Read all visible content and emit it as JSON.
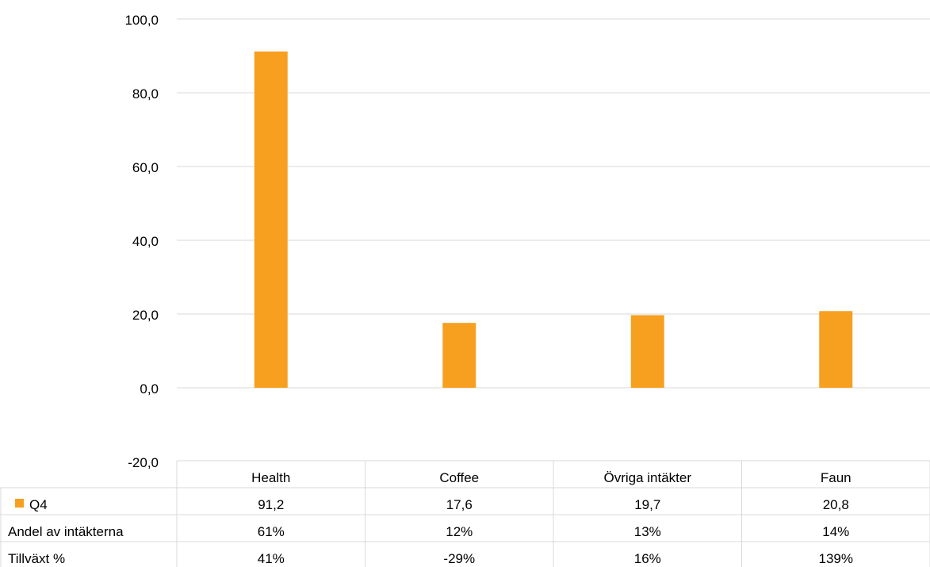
{
  "chart_data": {
    "type": "bar",
    "categories": [
      "Health",
      "Coffee",
      "Övriga intäkter",
      "Faun"
    ],
    "series": [
      {
        "name": "Q4",
        "values": [
          91.2,
          17.6,
          19.7,
          20.8
        ],
        "color": "#f7a020"
      }
    ],
    "ylim": [
      -20,
      100
    ],
    "yticks": [
      "100,0",
      "80,0",
      "60,0",
      "40,0",
      "20,0",
      "0,0",
      "-20,0"
    ],
    "ytick_values": [
      100,
      80,
      60,
      40,
      20,
      0,
      -20
    ],
    "grid": true,
    "data_table": {
      "rows": [
        {
          "label": "Q4",
          "cells": [
            "91,2",
            "17,6",
            "19,7",
            "20,8"
          ],
          "has_legend_key": true
        },
        {
          "label": "Andel av intäkterna",
          "cells": [
            "61%",
            "12%",
            "13%",
            "14%"
          ],
          "has_legend_key": false
        },
        {
          "label": "Tillväxt %",
          "cells": [
            "41%",
            "-29%",
            "16%",
            "139%"
          ],
          "has_legend_key": false
        }
      ]
    }
  }
}
